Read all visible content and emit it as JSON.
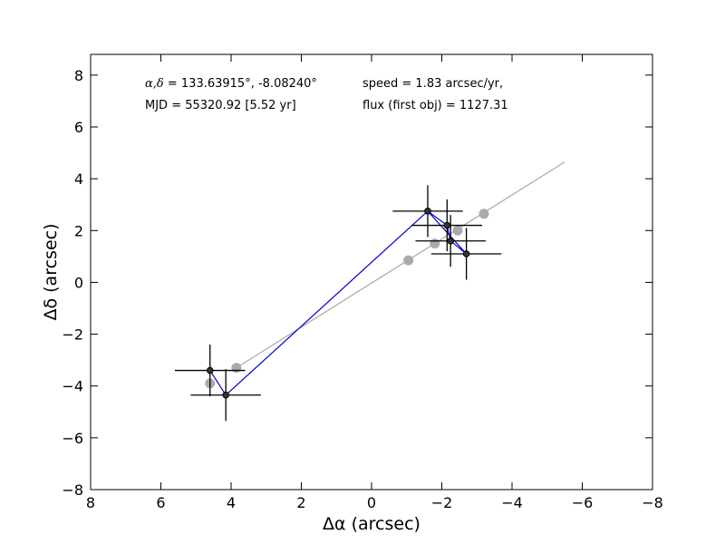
{
  "chart_data": {
    "type": "scatter",
    "title": "",
    "xlabel": "Δα (arcsec)",
    "ylabel": "Δδ (arcsec)",
    "xlim": [
      8,
      -8
    ],
    "ylim": [
      -8,
      8.8
    ],
    "x_ticks": [
      8,
      6,
      4,
      2,
      0,
      -2,
      -4,
      -6,
      -8
    ],
    "y_ticks": [
      -8,
      -6,
      -4,
      -2,
      0,
      2,
      4,
      6,
      8
    ],
    "x_tick_labels": [
      "8",
      "6",
      "4",
      "2",
      "0",
      "−2",
      "−4",
      "−6",
      "−8"
    ],
    "y_tick_labels": [
      "−8",
      "−6",
      "−4",
      "−2",
      "0",
      "2",
      "4",
      "6",
      "8"
    ],
    "grid": false,
    "legend": "none",
    "annotations": {
      "coords_sym": "α,δ",
      "coords_value": " = 133.63915°, -8.08240°",
      "mjd": "MJD = 55320.92 [5.52 yr]",
      "speed": "speed = 1.83 arcsec/yr,",
      "flux": "flux (first obj) = 1127.31"
    },
    "fit_line": {
      "color": "#aaaaaa",
      "x": [
        3.85,
        -5.5
      ],
      "y": [
        -3.3,
        4.65
      ]
    },
    "model_points": {
      "color": "#aaaaaa",
      "x": [
        3.85,
        4.6,
        -1.05,
        -1.8,
        -2.45,
        -3.2
      ],
      "y": [
        -3.3,
        -3.9,
        0.85,
        1.5,
        2.0,
        2.65
      ]
    },
    "observed_track": {
      "color": "#0000cc",
      "x": [
        4.6,
        4.15,
        -1.6,
        -2.15,
        -2.25,
        -2.7,
        -1.6
      ],
      "y": [
        -3.4,
        -4.35,
        2.75,
        2.2,
        1.6,
        1.1,
        2.75
      ]
    },
    "observed_points": {
      "color": "#000000",
      "x": [
        4.6,
        4.15,
        -1.6,
        -2.15,
        -2.25,
        -2.7
      ],
      "y": [
        -3.4,
        -4.35,
        2.75,
        2.2,
        1.6,
        1.1
      ],
      "x_err": [
        1.0,
        1.0,
        1.0,
        1.0,
        1.0,
        1.0
      ],
      "y_err": [
        1.0,
        1.0,
        1.0,
        1.0,
        1.0,
        1.0
      ]
    }
  }
}
